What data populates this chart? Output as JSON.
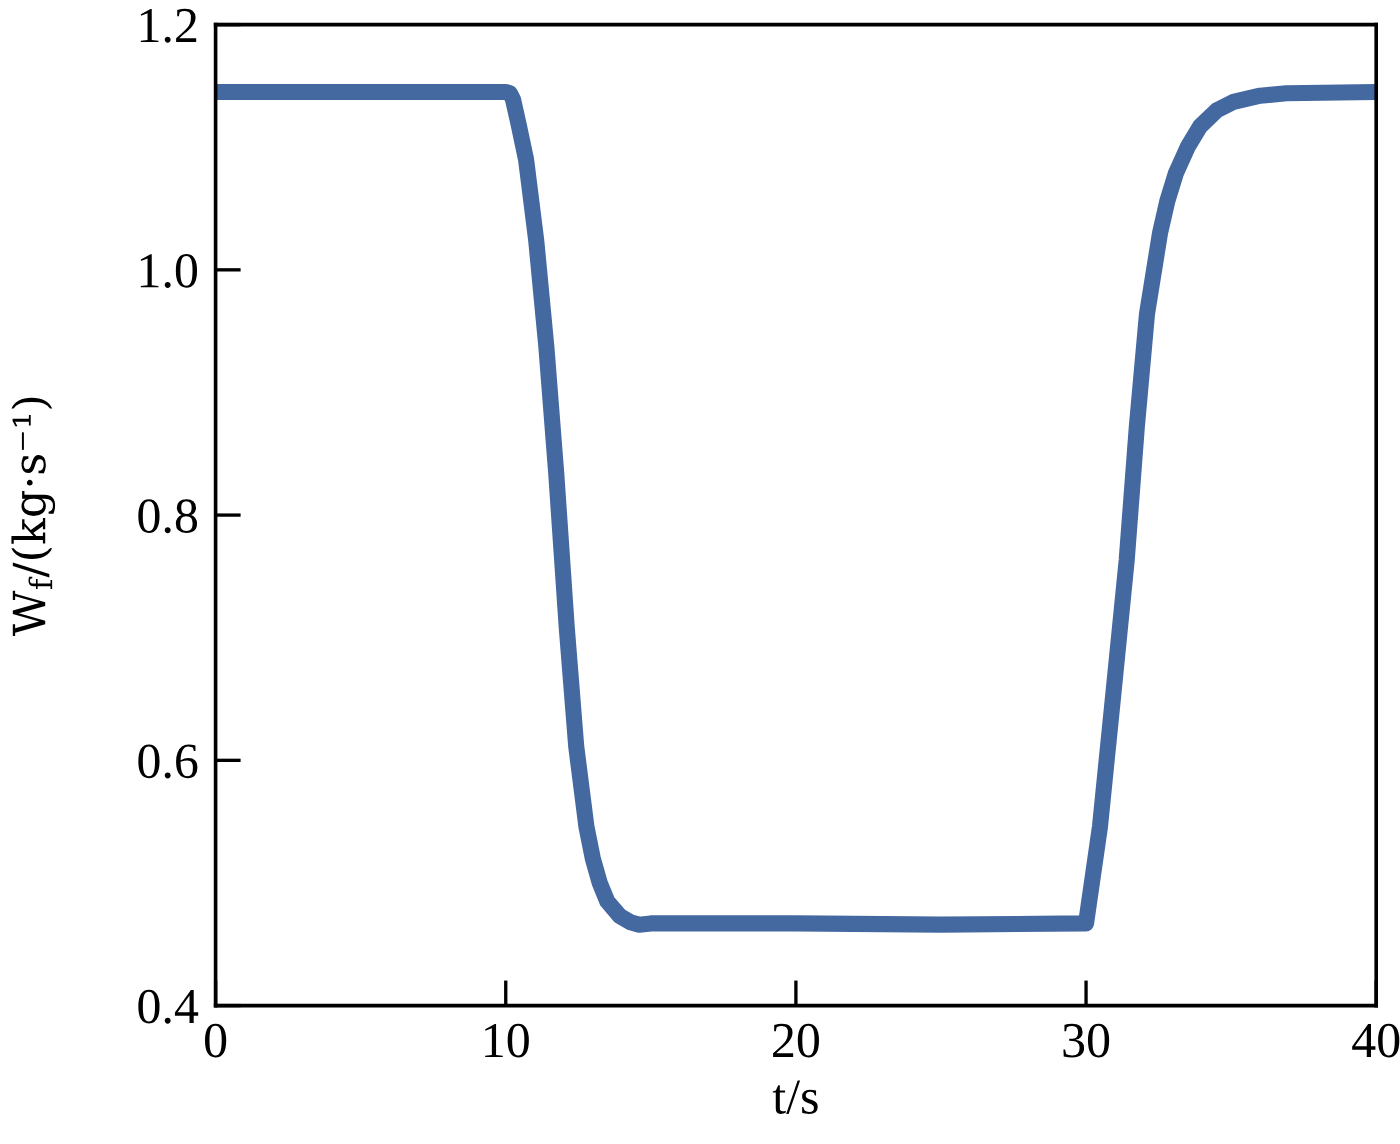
{
  "chart_data": {
    "type": "line",
    "xlabel": "t/s",
    "ylabel": "W$_{f}$/(kg·s⁻¹)",
    "x": [
      0,
      5,
      10,
      10.14,
      10.25,
      10.45,
      10.7,
      11.05,
      11.4,
      11.74,
      12.1,
      12.43,
      12.78,
      13.0,
      13.24,
      13.5,
      13.93,
      14.3,
      14.6,
      15,
      20,
      25,
      29.9,
      30.0,
      30.48,
      30.94,
      31.4,
      31.75,
      32.1,
      32.55,
      32.8,
      33.1,
      33.5,
      33.93,
      34.5,
      35.08,
      36.0,
      36.9,
      40
    ],
    "series": [
      {
        "color": "#4468a0",
        "line_style": "solid",
        "values": [
          1.145,
          1.145,
          1.145,
          1.144,
          1.139,
          1.118,
          1.09,
          1.024,
          0.937,
          0.834,
          0.709,
          0.611,
          0.546,
          0.52,
          0.5,
          0.485,
          0.473,
          0.468,
          0.466,
          0.467,
          0.467,
          0.466,
          0.467,
          0.467,
          0.546,
          0.654,
          0.763,
          0.872,
          0.964,
          1.03,
          1.056,
          1.079,
          1.1,
          1.117,
          1.13,
          1.137,
          1.142,
          1.144,
          1.145
        ]
      }
    ],
    "xlim": [
      0,
      40
    ],
    "ylim": [
      0.4,
      1.2
    ],
    "xticks": [
      0,
      10,
      20,
      30,
      40
    ],
    "yticks": [
      0.4,
      0.6,
      0.8,
      {
        "value": 1.0,
        "label": "1.0"
      },
      1.2
    ]
  }
}
